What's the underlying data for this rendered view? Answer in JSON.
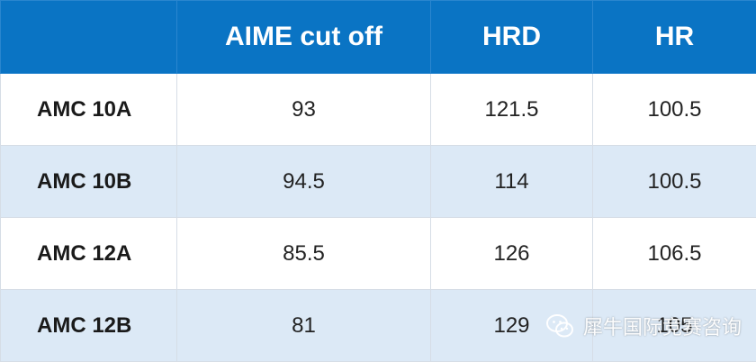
{
  "table": {
    "headers": [
      "",
      "AIME cut off",
      "HRD",
      "HR"
    ],
    "rows": [
      {
        "label": "AMC 10A",
        "aime": "93",
        "hrd": "121.5",
        "hr": "100.5"
      },
      {
        "label": "AMC 10B",
        "aime": "94.5",
        "hrd": "114",
        "hr": "100.5"
      },
      {
        "label": "AMC 12A",
        "aime": "85.5",
        "hrd": "126",
        "hr": "106.5"
      },
      {
        "label": "AMC 12B",
        "aime": "81",
        "hrd": "129",
        "hr": "105"
      }
    ]
  },
  "watermark": {
    "text": "犀牛国际竞赛咨询",
    "icon": "wechat-icon"
  },
  "colors": {
    "header_bg": "#0a74c4",
    "alt_row_bg": "#dce9f6",
    "row_bg": "#ffffff"
  }
}
